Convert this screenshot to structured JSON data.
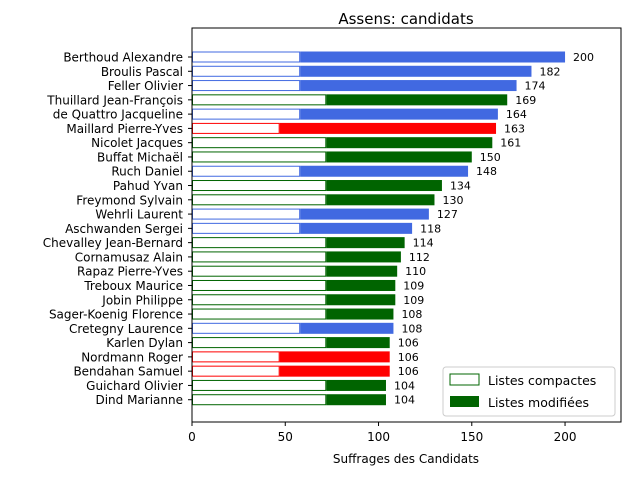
{
  "chart_data": {
    "type": "bar",
    "orientation": "horizontal",
    "stacked": true,
    "title": "Assens: candidats",
    "xlabel": "Suffrages des Candidats",
    "ylabel": "",
    "xlim": [
      0,
      230
    ],
    "xticks": [
      0,
      50,
      100,
      150,
      200
    ],
    "grid": false,
    "legend_position": "bottom-right",
    "series": [
      {
        "name": "Listes compactes",
        "style": "outline"
      },
      {
        "name": "Listes modifiées",
        "style": "filled"
      }
    ],
    "lists": {
      "blue": {
        "color": "#4169e1",
        "compact": 58
      },
      "green": {
        "color": "#006400",
        "compact": 72
      },
      "red": {
        "color": "#ff0000",
        "compact": 47
      }
    },
    "candidates": [
      {
        "name": "Berthoud Alexandre",
        "list": "blue",
        "total": 200,
        "label": "200"
      },
      {
        "name": "Broulis Pascal",
        "list": "blue",
        "total": 182,
        "label": "182"
      },
      {
        "name": "Feller Olivier",
        "list": "blue",
        "total": 174,
        "label": "174"
      },
      {
        "name": "Thuillard Jean-François",
        "list": "green",
        "total": 169,
        "label": "169"
      },
      {
        "name": "de Quattro Jacqueline",
        "list": "blue",
        "total": 164,
        "label": "164"
      },
      {
        "name": "Maillard Pierre-Yves",
        "list": "red",
        "total": 163,
        "label": "163"
      },
      {
        "name": "Nicolet Jacques",
        "list": "green",
        "total": 161,
        "label": "161"
      },
      {
        "name": "Buffat Michaël",
        "list": "green",
        "total": 150,
        "label": "150"
      },
      {
        "name": "Ruch Daniel",
        "list": "blue",
        "total": 148,
        "label": "148"
      },
      {
        "name": "Pahud Yvan",
        "list": "green",
        "total": 134,
        "label": "134"
      },
      {
        "name": "Freymond Sylvain",
        "list": "green",
        "total": 130,
        "label": "130"
      },
      {
        "name": "Wehrli Laurent",
        "list": "blue",
        "total": 127,
        "label": "127"
      },
      {
        "name": "Aschwanden Sergei",
        "list": "blue",
        "total": 118,
        "label": "118"
      },
      {
        "name": "Chevalley Jean-Bernard",
        "list": "green",
        "total": 114,
        "label": "114"
      },
      {
        "name": "Cornamusaz Alain",
        "list": "green",
        "total": 112,
        "label": "112"
      },
      {
        "name": "Rapaz Pierre-Yves",
        "list": "green",
        "total": 110,
        "label": "110"
      },
      {
        "name": "Treboux Maurice",
        "list": "green",
        "total": 109,
        "label": "109"
      },
      {
        "name": "Jobin Philippe",
        "list": "green",
        "total": 109,
        "label": "109"
      },
      {
        "name": "Sager-Koenig Florence",
        "list": "green",
        "total": 108,
        "label": "108"
      },
      {
        "name": "Cretegny Laurence",
        "list": "blue",
        "total": 108,
        "label": "108"
      },
      {
        "name": "Karlen Dylan",
        "list": "green",
        "total": 106,
        "label": "106"
      },
      {
        "name": "Nordmann Roger",
        "list": "red",
        "total": 106,
        "label": "106"
      },
      {
        "name": "Bendahan Samuel",
        "list": "red",
        "total": 106,
        "label": "106"
      },
      {
        "name": "Guichard Olivier",
        "list": "green",
        "total": 104,
        "label": "104"
      },
      {
        "name": "Dind Marianne",
        "list": "green",
        "total": 104,
        "label": "104"
      }
    ]
  }
}
